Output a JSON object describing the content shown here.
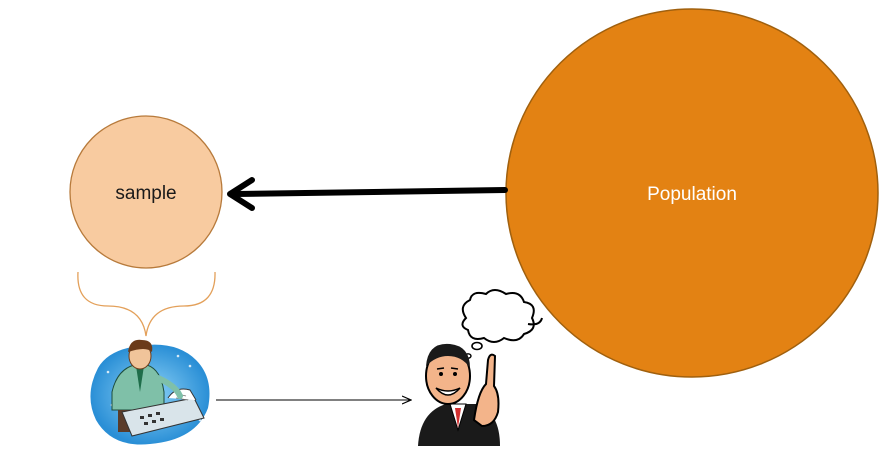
{
  "diagram": {
    "population": {
      "label": "Population",
      "fill": "#E38213",
      "stroke": "#A0600E",
      "text_color": "#FFFFFF"
    },
    "sample": {
      "label": "sample",
      "fill": "#F8CBA0",
      "stroke": "#B77A3B",
      "text_color": "#1A1A1A"
    },
    "brace": {
      "color": "#E3A05A"
    },
    "arrows": {
      "population_to_sample": {
        "color": "#000000"
      },
      "researcher_to_thinker": {
        "color": "#000000"
      }
    },
    "clipart": {
      "researcher": "researcher-at-desk-icon",
      "thinker": "thinking-man-icon"
    }
  }
}
